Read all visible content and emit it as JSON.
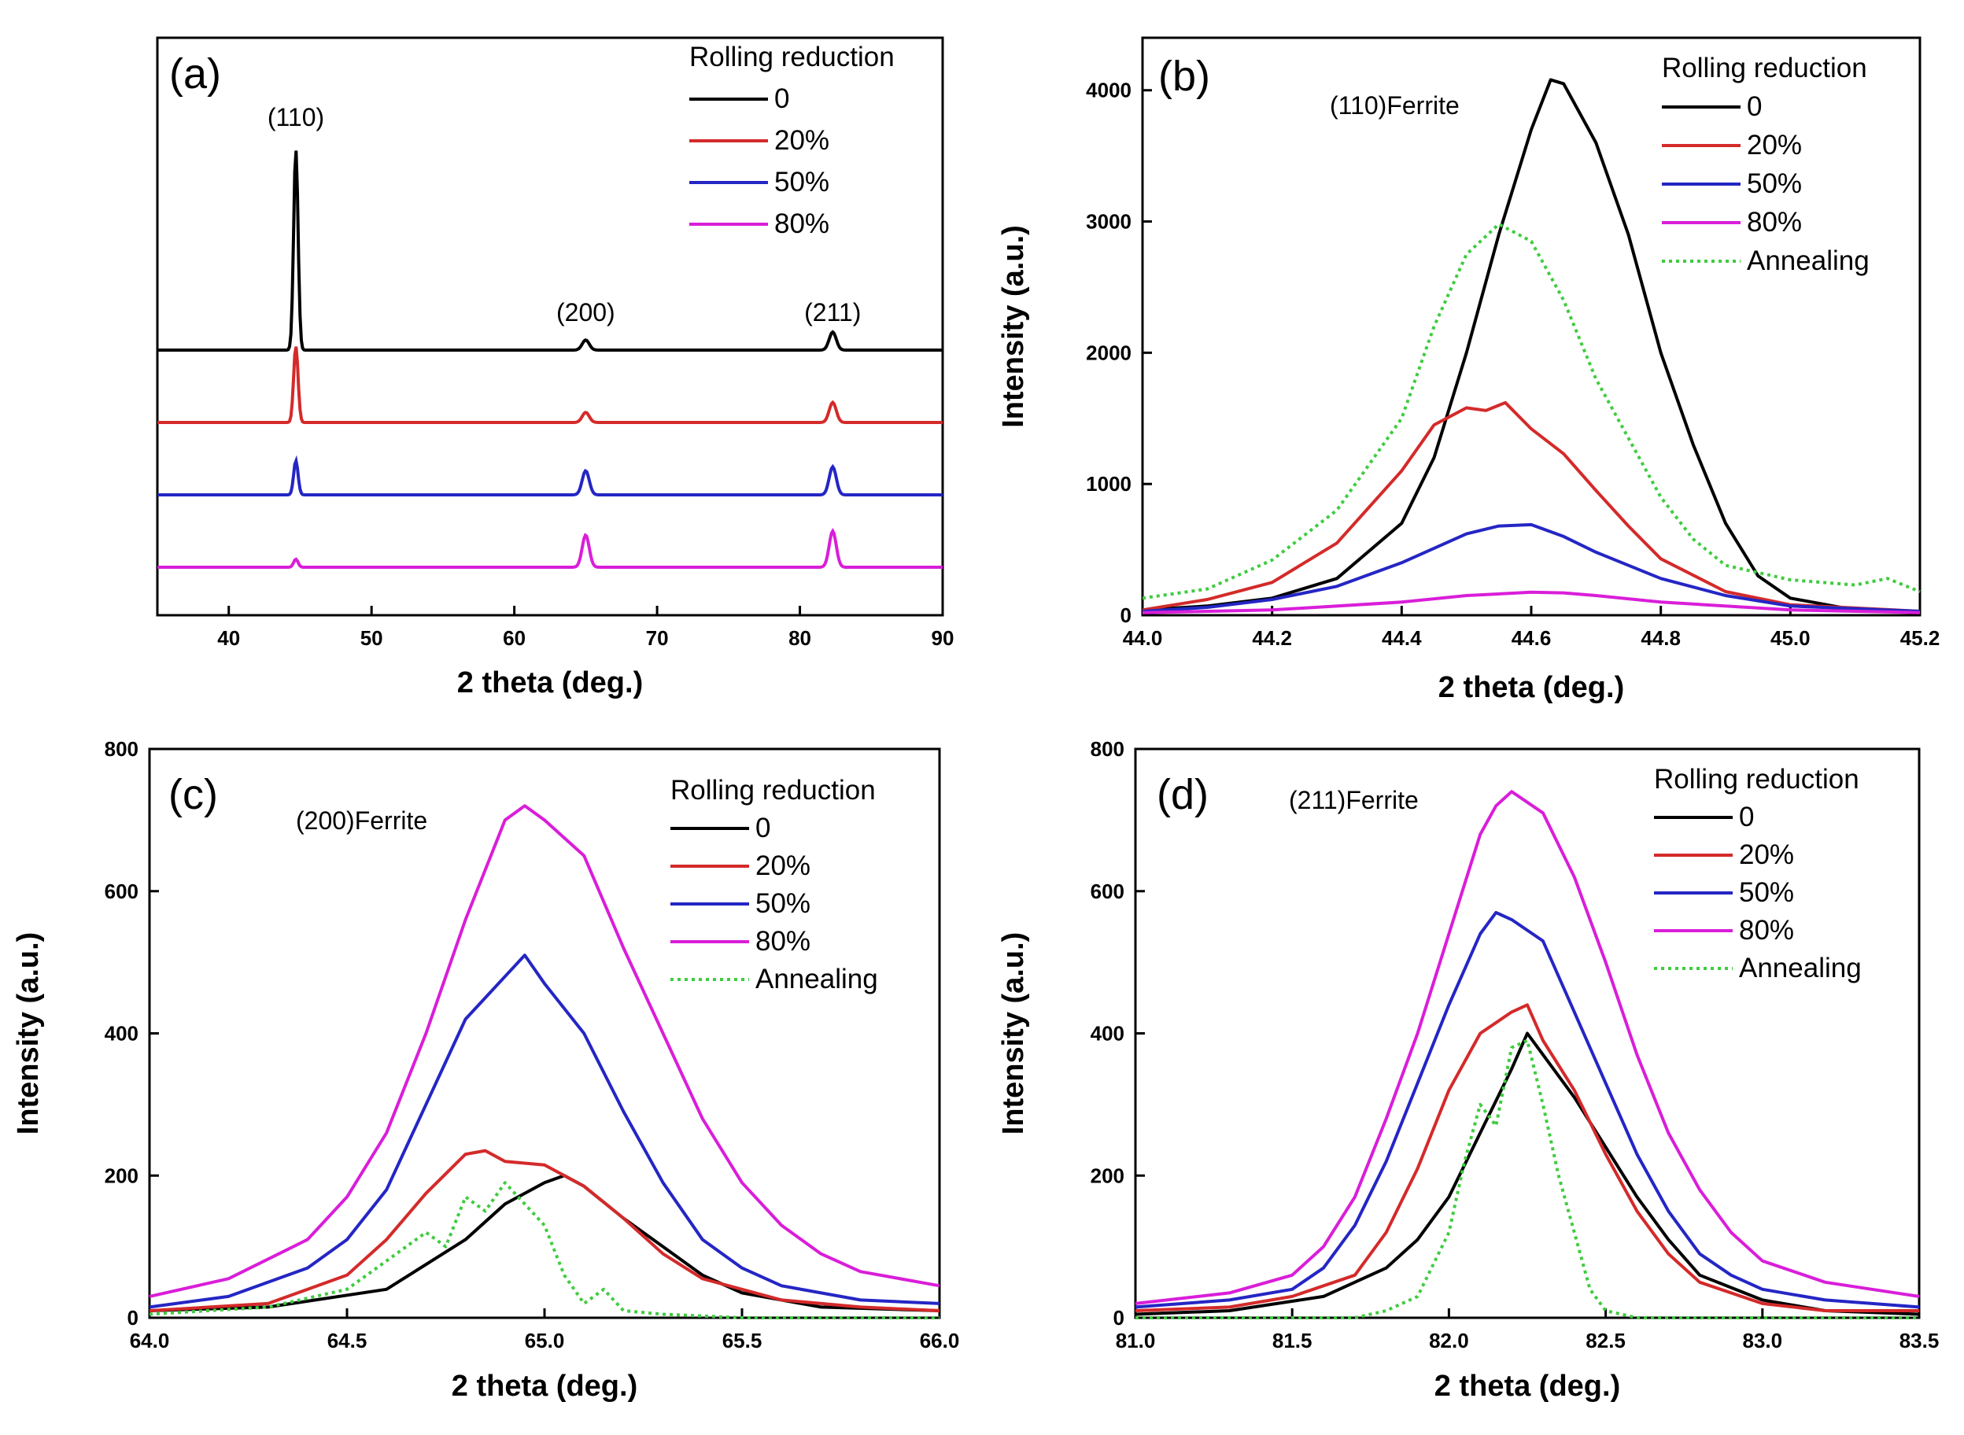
{
  "colors": {
    "s0": "#000000",
    "s20": "#d42a2a",
    "s50": "#2426c4",
    "s80": "#d91ed9",
    "annealing": "#3fcc3f"
  },
  "chart_data": [
    {
      "id": "a",
      "type": "line",
      "panel_label": "(a)",
      "xlabel": "2 theta (deg.)",
      "ylabel": "",
      "xlim": [
        35,
        90
      ],
      "xticks": [
        40,
        50,
        60,
        70,
        80,
        90
      ],
      "yticks": [],
      "stacked": true,
      "legend_title": "Rolling reduction",
      "legend": [
        "0",
        "20%",
        "50%",
        "80%"
      ],
      "peak_labels": [
        {
          "text": "(110)",
          "x": 44.7
        },
        {
          "text": "(200)",
          "x": 65.0
        },
        {
          "text": "(211)",
          "x": 82.3
        }
      ],
      "series": [
        {
          "name": "0",
          "color_key": "s0",
          "peaks": [
            {
              "x": 44.7,
              "h": 1.0
            },
            {
              "x": 65.0,
              "h": 0.05
            },
            {
              "x": 82.3,
              "h": 0.09
            }
          ]
        },
        {
          "name": "20%",
          "color_key": "s20",
          "peaks": [
            {
              "x": 44.7,
              "h": 0.38
            },
            {
              "x": 65.0,
              "h": 0.05
            },
            {
              "x": 82.3,
              "h": 0.1
            }
          ]
        },
        {
          "name": "50%",
          "color_key": "s50",
          "peaks": [
            {
              "x": 44.7,
              "h": 0.17
            },
            {
              "x": 65.0,
              "h": 0.12
            },
            {
              "x": 82.3,
              "h": 0.14
            }
          ]
        },
        {
          "name": "80%",
          "color_key": "s80",
          "peaks": [
            {
              "x": 44.7,
              "h": 0.04
            },
            {
              "x": 65.0,
              "h": 0.16
            },
            {
              "x": 82.3,
              "h": 0.18
            }
          ]
        }
      ]
    },
    {
      "id": "b",
      "type": "line",
      "panel_label": "(b)",
      "annotation": "(110)Ferrite",
      "xlabel": "2 theta (deg.)",
      "ylabel": "Intensity (a.u.)",
      "xlim": [
        44.0,
        45.2
      ],
      "ylim": [
        0,
        4400
      ],
      "xticks": [
        "44.0",
        "44.2",
        "44.4",
        "44.6",
        "44.8",
        "45.0",
        "45.2"
      ],
      "yticks": [
        0,
        1000,
        2000,
        3000,
        4000
      ],
      "legend_title": "Rolling reduction",
      "legend": [
        "0",
        "20%",
        "50%",
        "80%",
        "Annealing"
      ],
      "series": [
        {
          "name": "0",
          "color_key": "s0",
          "x": [
            44.0,
            44.1,
            44.2,
            44.3,
            44.4,
            44.45,
            44.5,
            44.55,
            44.6,
            44.63,
            44.65,
            44.7,
            44.75,
            44.8,
            44.85,
            44.9,
            44.95,
            45.0,
            45.1,
            45.2
          ],
          "y": [
            40,
            70,
            130,
            280,
            700,
            1200,
            2000,
            2900,
            3700,
            4080,
            4050,
            3600,
            2900,
            2000,
            1300,
            700,
            300,
            130,
            40,
            20
          ]
        },
        {
          "name": "20%",
          "color_key": "s20",
          "x": [
            44.0,
            44.1,
            44.2,
            44.3,
            44.4,
            44.45,
            44.5,
            44.53,
            44.56,
            44.6,
            44.65,
            44.7,
            44.75,
            44.8,
            44.9,
            45.0,
            45.2
          ],
          "y": [
            40,
            120,
            250,
            550,
            1100,
            1450,
            1580,
            1560,
            1620,
            1420,
            1230,
            950,
            680,
            430,
            180,
            80,
            30
          ]
        },
        {
          "name": "50%",
          "color_key": "s50",
          "x": [
            44.0,
            44.1,
            44.2,
            44.3,
            44.4,
            44.5,
            44.55,
            44.6,
            44.65,
            44.7,
            44.8,
            44.9,
            45.0,
            45.2
          ],
          "y": [
            30,
            60,
            120,
            220,
            400,
            620,
            680,
            690,
            600,
            480,
            280,
            150,
            70,
            30
          ]
        },
        {
          "name": "80%",
          "color_key": "s80",
          "x": [
            44.0,
            44.2,
            44.4,
            44.5,
            44.6,
            44.65,
            44.7,
            44.8,
            45.0,
            45.2
          ],
          "y": [
            20,
            40,
            100,
            150,
            175,
            170,
            150,
            100,
            40,
            20
          ]
        },
        {
          "name": "Annealing",
          "color_key": "annealing",
          "dashed": true,
          "x": [
            44.0,
            44.1,
            44.2,
            44.3,
            44.4,
            44.45,
            44.5,
            44.55,
            44.6,
            44.65,
            44.7,
            44.8,
            44.85,
            44.9,
            45.0,
            45.1,
            45.15,
            45.2
          ],
          "y": [
            130,
            200,
            420,
            800,
            1500,
            2200,
            2750,
            2980,
            2850,
            2400,
            1800,
            900,
            580,
            380,
            270,
            230,
            280,
            180
          ]
        }
      ]
    },
    {
      "id": "c",
      "type": "line",
      "panel_label": "(c)",
      "annotation": "(200)Ferrite",
      "xlabel": "2 theta (deg.)",
      "ylabel": "Intensity (a.u.)",
      "xlim": [
        64.0,
        66.0
      ],
      "ylim": [
        0,
        800
      ],
      "xticks": [
        "64.0",
        "64.5",
        "65.0",
        "65.5",
        "66.0"
      ],
      "yticks": [
        0,
        200,
        400,
        600,
        800
      ],
      "legend_title": "Rolling reduction",
      "legend": [
        "0",
        "20%",
        "50%",
        "80%",
        "Annealing"
      ],
      "series": [
        {
          "name": "0",
          "color_key": "s0",
          "x": [
            64.0,
            64.3,
            64.6,
            64.8,
            64.9,
            65.0,
            65.05,
            65.1,
            65.2,
            65.3,
            65.4,
            65.5,
            65.7,
            66.0
          ],
          "y": [
            10,
            15,
            40,
            110,
            160,
            190,
            200,
            185,
            140,
            100,
            60,
            35,
            15,
            10
          ]
        },
        {
          "name": "20%",
          "color_key": "s20",
          "x": [
            64.0,
            64.3,
            64.5,
            64.6,
            64.7,
            64.8,
            64.85,
            64.9,
            65.0,
            65.1,
            65.2,
            65.3,
            65.4,
            65.6,
            65.8,
            66.0
          ],
          "y": [
            10,
            20,
            60,
            110,
            175,
            230,
            235,
            220,
            215,
            185,
            140,
            90,
            55,
            25,
            15,
            10
          ]
        },
        {
          "name": "50%",
          "color_key": "s50",
          "x": [
            64.0,
            64.2,
            64.4,
            64.5,
            64.6,
            64.7,
            64.8,
            64.9,
            64.95,
            65.0,
            65.1,
            65.2,
            65.3,
            65.4,
            65.5,
            65.6,
            65.8,
            66.0
          ],
          "y": [
            15,
            30,
            70,
            110,
            180,
            300,
            420,
            480,
            510,
            470,
            400,
            290,
            190,
            110,
            70,
            45,
            25,
            20
          ]
        },
        {
          "name": "80%",
          "color_key": "s80",
          "x": [
            64.0,
            64.2,
            64.4,
            64.5,
            64.6,
            64.7,
            64.8,
            64.9,
            64.95,
            65.0,
            65.1,
            65.2,
            65.3,
            65.4,
            65.5,
            65.6,
            65.7,
            65.8,
            66.0
          ],
          "y": [
            30,
            55,
            110,
            170,
            260,
            400,
            560,
            700,
            720,
            700,
            650,
            520,
            400,
            280,
            190,
            130,
            90,
            65,
            45
          ]
        },
        {
          "name": "Annealing",
          "color_key": "annealing",
          "dashed": true,
          "x": [
            64.0,
            64.3,
            64.5,
            64.6,
            64.7,
            64.75,
            64.8,
            64.85,
            64.9,
            64.95,
            65.0,
            65.05,
            65.1,
            65.15,
            65.2,
            65.3,
            65.5,
            66.0
          ],
          "y": [
            5,
            15,
            40,
            80,
            120,
            100,
            170,
            150,
            190,
            160,
            130,
            60,
            20,
            40,
            10,
            5,
            0,
            0
          ]
        }
      ]
    },
    {
      "id": "d",
      "type": "line",
      "panel_label": "(d)",
      "annotation": "(211)Ferrite",
      "xlabel": "2 theta (deg.)",
      "ylabel": "Intensity (a.u.)",
      "xlim": [
        81.0,
        83.5
      ],
      "ylim": [
        0,
        800
      ],
      "xticks": [
        "81.0",
        "81.5",
        "82.0",
        "82.5",
        "83.0",
        "83.5"
      ],
      "yticks": [
        0,
        200,
        400,
        600,
        800
      ],
      "legend_title": "Rolling reduction",
      "legend": [
        "0",
        "20%",
        "50%",
        "80%",
        "Annealing"
      ],
      "series": [
        {
          "name": "0",
          "color_key": "s0",
          "x": [
            81.0,
            81.3,
            81.6,
            81.8,
            81.9,
            82.0,
            82.1,
            82.2,
            82.25,
            82.3,
            82.4,
            82.5,
            82.6,
            82.7,
            82.8,
            83.0,
            83.2,
            83.5
          ],
          "y": [
            5,
            10,
            30,
            70,
            110,
            170,
            260,
            350,
            400,
            370,
            310,
            240,
            170,
            110,
            60,
            25,
            10,
            5
          ]
        },
        {
          "name": "20%",
          "color_key": "s20",
          "x": [
            81.0,
            81.3,
            81.5,
            81.7,
            81.8,
            81.9,
            82.0,
            82.1,
            82.2,
            82.25,
            82.3,
            82.4,
            82.5,
            82.6,
            82.7,
            82.8,
            83.0,
            83.2,
            83.5
          ],
          "y": [
            10,
            15,
            30,
            60,
            120,
            210,
            320,
            400,
            430,
            440,
            390,
            320,
            230,
            150,
            90,
            50,
            20,
            10,
            10
          ]
        },
        {
          "name": "50%",
          "color_key": "s50",
          "x": [
            81.0,
            81.3,
            81.5,
            81.6,
            81.7,
            81.8,
            81.9,
            82.0,
            82.1,
            82.15,
            82.2,
            82.3,
            82.4,
            82.5,
            82.6,
            82.7,
            82.8,
            82.9,
            83.0,
            83.2,
            83.5
          ],
          "y": [
            15,
            25,
            40,
            70,
            130,
            220,
            330,
            440,
            540,
            570,
            560,
            530,
            430,
            330,
            230,
            150,
            90,
            60,
            40,
            25,
            15
          ]
        },
        {
          "name": "80%",
          "color_key": "s80",
          "x": [
            81.0,
            81.3,
            81.5,
            81.6,
            81.7,
            81.8,
            81.9,
            82.0,
            82.1,
            82.15,
            82.2,
            82.3,
            82.4,
            82.5,
            82.6,
            82.7,
            82.8,
            82.9,
            83.0,
            83.2,
            83.5
          ],
          "y": [
            20,
            35,
            60,
            100,
            170,
            280,
            400,
            540,
            680,
            720,
            740,
            710,
            620,
            500,
            370,
            260,
            180,
            120,
            80,
            50,
            30
          ]
        },
        {
          "name": "Annealing",
          "color_key": "annealing",
          "dashed": true,
          "x": [
            81.0,
            81.7,
            81.8,
            81.9,
            82.0,
            82.05,
            82.1,
            82.15,
            82.2,
            82.25,
            82.3,
            82.35,
            82.4,
            82.45,
            82.5,
            82.6,
            83.5
          ],
          "y": [
            0,
            0,
            10,
            30,
            120,
            220,
            300,
            270,
            380,
            390,
            300,
            200,
            120,
            40,
            10,
            0,
            0
          ]
        }
      ]
    }
  ]
}
